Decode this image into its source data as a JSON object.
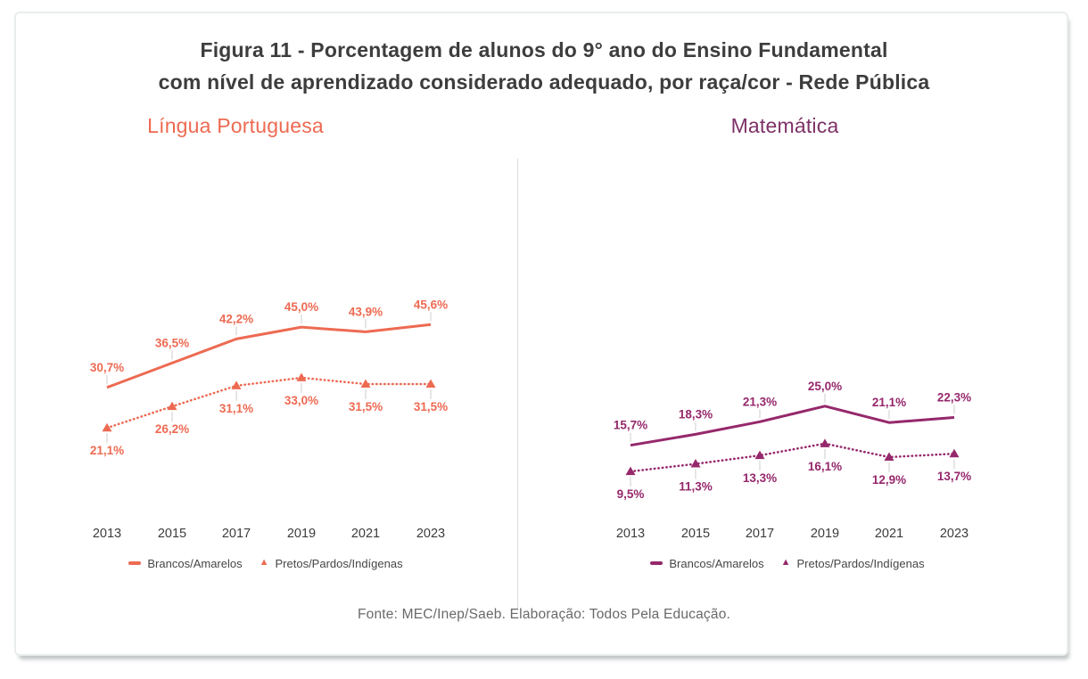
{
  "figure": {
    "title_line1": "Figura 11 - Porcentagem de alunos do 9° ano do Ensino Fundamental",
    "title_line2": "com nível de aprendizado considerado adequado, por raça/cor - Rede Pública",
    "source": "Fonte: MEC/Inep/Saeb. Elaboração: Todos Pela Educação."
  },
  "colors": {
    "title_text": "#3d3d3d",
    "axis_text": "#3c3c3c",
    "legend_text": "#464646",
    "source_text": "#696969",
    "leader_tick": "#d6d6d6",
    "divider": "#dcdcdc",
    "portuguese_accent": "#ed6a52",
    "math_accent": "#96286c"
  },
  "chart_data": [
    {
      "type": "line",
      "title": "Língua Portuguesa",
      "color": "#ed6a52",
      "heading_color": "#ed6a52",
      "categories": [
        "2013",
        "2015",
        "2017",
        "2019",
        "2021",
        "2023"
      ],
      "value_suffix": "%",
      "decimal_separator": ",",
      "grid": false,
      "y_axis_visible": false,
      "legend_position": "bottom",
      "series": [
        {
          "name": "Brancos/Amarelos",
          "style": "solid",
          "values": [
            30.7,
            36.5,
            42.2,
            45.0,
            43.9,
            45.6
          ],
          "labels": [
            "30,7%",
            "36,5%",
            "42,2%",
            "45,0%",
            "43,9%",
            "45,6%"
          ]
        },
        {
          "name": "Pretos/Pardos/Indígenas",
          "style": "dotted-triangle",
          "values": [
            21.1,
            26.2,
            31.1,
            33.0,
            31.5,
            31.5
          ],
          "labels": [
            "21,1%",
            "26,2%",
            "31,1%",
            "33,0%",
            "31,5%",
            "31,5%"
          ]
        }
      ]
    },
    {
      "type": "line",
      "title": "Matemática",
      "color": "#96286c",
      "heading_color": "#7e3167",
      "categories": [
        "2013",
        "2015",
        "2017",
        "2019",
        "2021",
        "2023"
      ],
      "value_suffix": "%",
      "decimal_separator": ",",
      "grid": false,
      "y_axis_visible": false,
      "legend_position": "bottom",
      "series": [
        {
          "name": "Brancos/Amarelos",
          "style": "solid",
          "values": [
            15.7,
            18.3,
            21.3,
            25.0,
            21.1,
            22.3
          ],
          "labels": [
            "15,7%",
            "18,3%",
            "21,3%",
            "25,0%",
            "21,1%",
            "22,3%"
          ]
        },
        {
          "name": "Pretos/Pardos/Indígenas",
          "style": "dotted-triangle",
          "values": [
            9.5,
            11.3,
            13.3,
            16.1,
            12.9,
            13.7
          ],
          "labels": [
            "9,5%",
            "11,3%",
            "13,3%",
            "16,1%",
            "12,9%",
            "13,7%"
          ]
        }
      ]
    }
  ]
}
